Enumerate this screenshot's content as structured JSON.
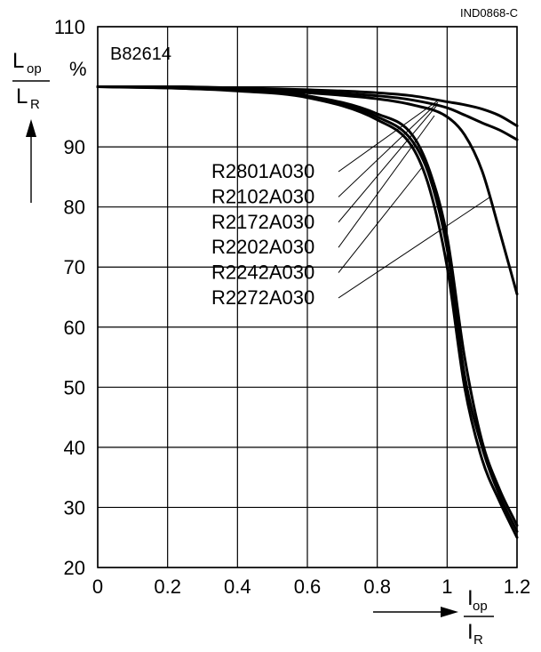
{
  "chart_data": {
    "type": "line",
    "title": "",
    "doc_id": "IND0868-C",
    "part_number": "B82614",
    "ylabel": {
      "symbol": "L",
      "sub": "op",
      "den_symbol": "L",
      "den_sub": "R",
      "unit": "%"
    },
    "xlabel": {
      "symbol": "I",
      "sub": "op",
      "den_symbol": "I",
      "den_sub": "R"
    },
    "xlim": [
      0,
      1.2
    ],
    "ylim": [
      20,
      110
    ],
    "xticks": [
      "0",
      "0.2",
      "0.4",
      "0.6",
      "0.8",
      "1",
      "1.2"
    ],
    "yticks": [
      "20",
      "30",
      "40",
      "50",
      "60",
      "70",
      "80",
      "90",
      "110"
    ],
    "grid": true,
    "line_color": "#000000",
    "series": [
      {
        "name": "R2801A030",
        "x": [
          0,
          0.2,
          0.4,
          0.6,
          0.8,
          0.9,
          0.95,
          1.0,
          1.05,
          1.1,
          1.15,
          1.2
        ],
        "y": [
          100,
          100,
          99.5,
          98.5,
          95,
          91,
          85,
          73,
          52,
          40,
          32,
          26
        ]
      },
      {
        "name": "R2102A030",
        "x": [
          0,
          0.2,
          0.4,
          0.6,
          0.8,
          0.9,
          0.95,
          1.0,
          1.05,
          1.1,
          1.15,
          1.2
        ],
        "y": [
          100,
          99.8,
          99.3,
          98.2,
          94.5,
          90,
          83,
          70,
          50,
          38,
          31,
          25
        ]
      },
      {
        "name": "R2172A030",
        "x": [
          0,
          0.2,
          0.4,
          0.6,
          0.8,
          0.9,
          0.95,
          1.0,
          1.05,
          1.1,
          1.15,
          1.2
        ],
        "y": [
          100,
          99.8,
          99.4,
          98.5,
          95.5,
          92,
          86,
          75,
          55,
          41,
          33,
          27
        ]
      },
      {
        "name": "R2202A030",
        "x": [
          0,
          0.2,
          0.4,
          0.6,
          0.8,
          0.9,
          1.0,
          1.05,
          1.1,
          1.15,
          1.2
        ],
        "y": [
          100,
          100,
          99.6,
          99,
          98,
          97,
          95,
          92,
          86,
          76,
          65.5
        ]
      },
      {
        "name": "R2242A030",
        "x": [
          0,
          0.2,
          0.4,
          0.6,
          0.8,
          0.9,
          1.0,
          1.05,
          1.1,
          1.15,
          1.2
        ],
        "y": [
          100,
          100,
          99.7,
          99.2,
          98.5,
          97.8,
          96.5,
          95.3,
          94,
          92.8,
          91.2
        ]
      },
      {
        "name": "R2272A030",
        "x": [
          0,
          0.2,
          0.4,
          0.6,
          0.8,
          0.9,
          1.0,
          1.05,
          1.1,
          1.15,
          1.2
        ],
        "y": [
          100,
          100,
          99.8,
          99.5,
          99,
          98.5,
          97.5,
          97,
          96.3,
          95.2,
          93.5
        ]
      }
    ]
  }
}
